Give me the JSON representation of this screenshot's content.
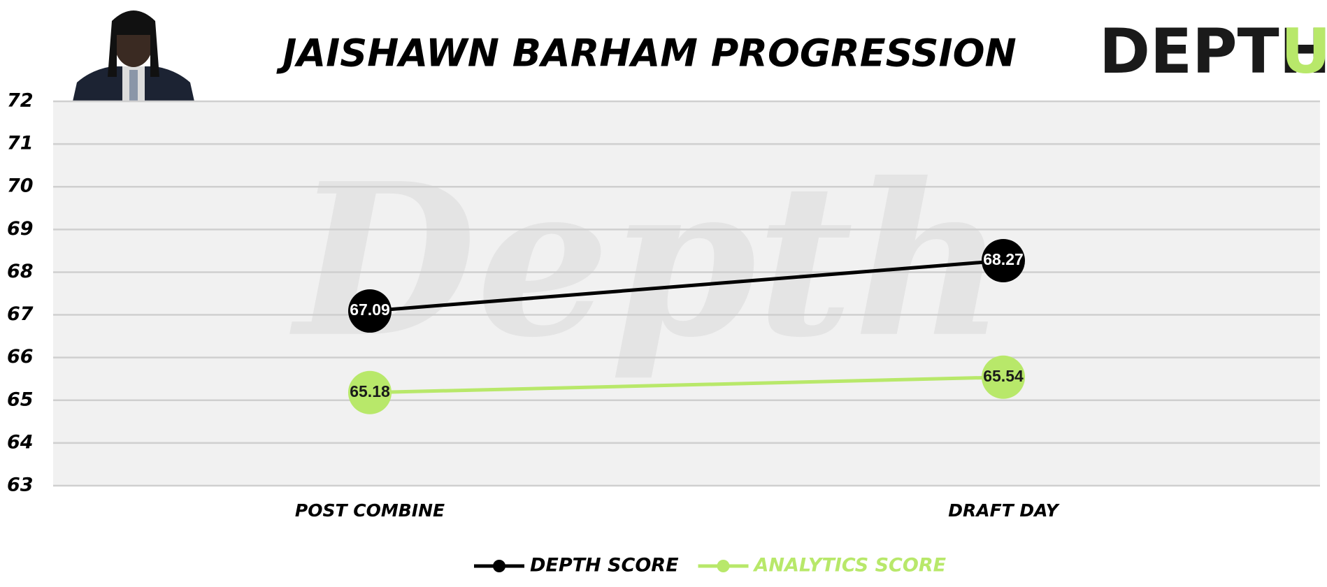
{
  "chart_data": {
    "type": "line",
    "title": "JAISHAWN BARHAM PROGRESSION",
    "logo": "DEPTH",
    "logo_accent": "U",
    "watermark": "Depth",
    "categories": [
      "POST COMBINE",
      "DRAFT DAY"
    ],
    "series": [
      {
        "name": "DEPTH SCORE",
        "color": "#000000",
        "values": [
          67.09,
          68.27
        ]
      },
      {
        "name": "ANALYTICS SCORE",
        "color": "#b8e86a",
        "values": [
          65.18,
          65.54
        ]
      }
    ],
    "ylim": [
      63,
      72
    ],
    "yticks": [
      63,
      64,
      65,
      66,
      67,
      68,
      69,
      70,
      71,
      72
    ],
    "grid": true
  }
}
